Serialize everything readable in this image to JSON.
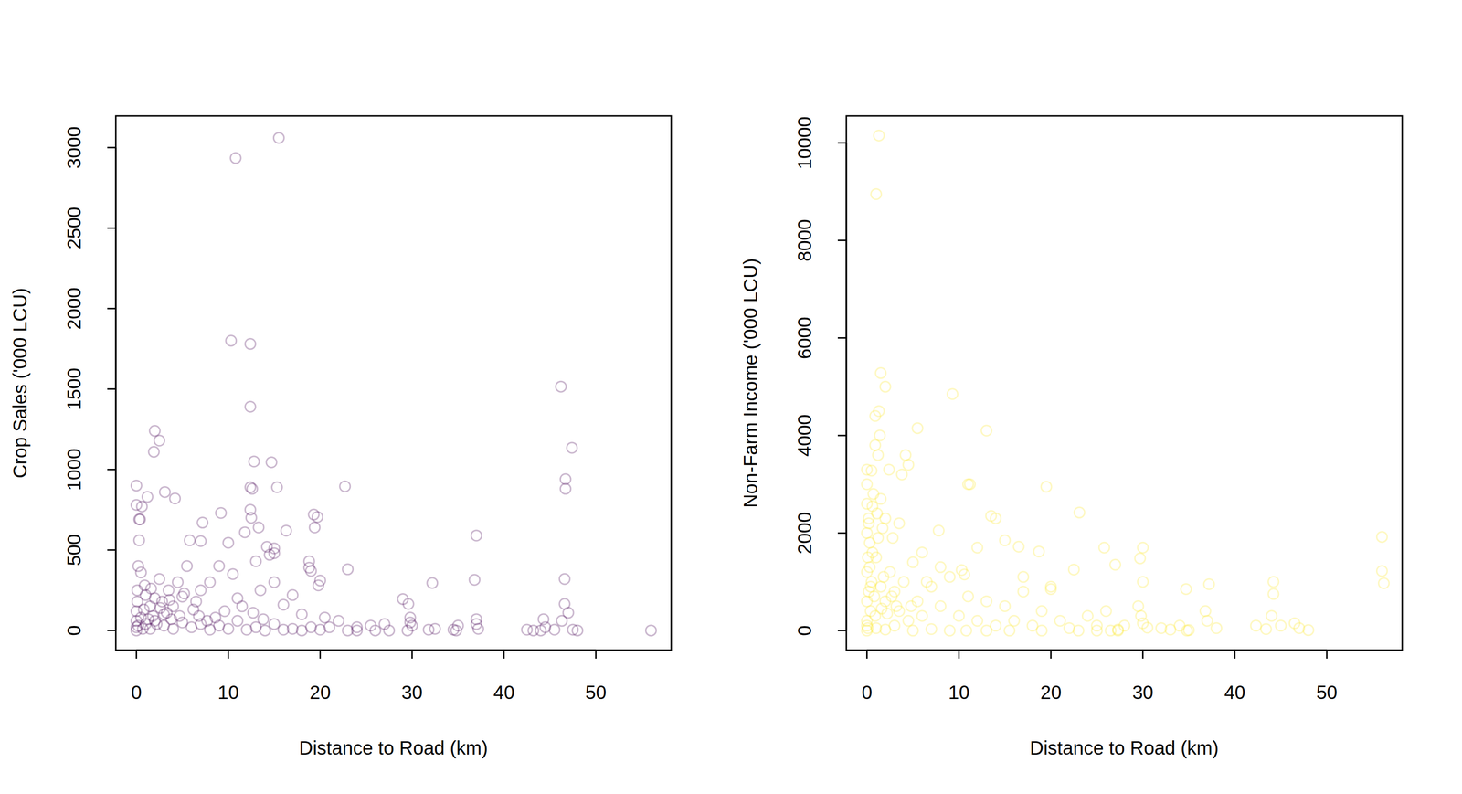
{
  "chart_data": [
    {
      "type": "scatter",
      "x_label": "Distance to Road (km)",
      "y_label": "Crop Sales ('000 LCU)",
      "color": "#440154",
      "marker": "circle-open",
      "xlim": [
        -2.24,
        58.2
      ],
      "ylim": [
        -122,
        3197
      ],
      "xticks": [
        0,
        10,
        20,
        30,
        40,
        50
      ],
      "yticks": [
        0,
        500,
        1000,
        1500,
        2000,
        2500,
        3000
      ],
      "x": [
        15.5,
        10.8,
        10.3,
        12.4,
        12.4,
        46.2,
        47.4,
        46.7,
        46.7,
        2,
        2.5,
        1.9,
        12.8,
        14.7,
        15.3,
        22.7,
        12.4,
        12.6,
        0,
        3.1,
        4.2,
        1.2,
        0,
        0.6,
        9.2,
        19.3,
        19.7,
        7.2,
        0.3,
        37,
        46.6,
        36.8,
        32.2,
        13.3,
        12.4,
        12.5,
        11.8,
        16.3,
        19.4,
        5.8,
        10,
        7,
        14.2,
        15,
        15,
        14.5,
        13,
        18.8,
        18.8,
        19,
        23,
        20,
        19.8,
        29,
        29.6,
        29.8,
        29.8,
        30,
        37,
        37,
        37.2,
        44.3,
        44.5,
        46.6,
        47,
        46.3,
        47.5,
        45.5,
        44,
        43.2,
        42.5,
        48,
        56,
        35,
        34.5,
        32.5,
        31.8,
        27,
        25.5,
        24,
        22,
        21,
        20.5,
        18,
        17,
        16,
        15,
        13.5,
        11,
        10.5,
        9,
        8,
        7,
        6.5,
        5.5,
        5,
        4.5,
        4,
        3.5,
        3,
        2.5,
        2,
        1.5,
        1,
        0.5,
        0.3,
        0.2,
        0.1,
        0,
        0,
        0,
        0,
        0.5,
        1,
        1.5,
        2,
        3,
        4,
        5,
        6,
        7,
        8,
        9,
        10,
        11,
        12,
        13,
        14,
        15,
        16,
        17,
        18,
        19,
        20,
        23,
        24,
        26,
        27.5,
        29.5,
        34.8,
        0.8,
        1.8,
        2.8,
        3.8,
        0.4,
        0.2,
        0.7,
        1.3,
        2.2,
        3.3,
        4.7,
        6.2,
        7.7,
        8.6,
        9.6,
        0.1,
        0.9,
        1.6,
        2.6,
        3.6,
        5.2,
        6.8,
        11.5,
        12.7,
        13.8
      ],
      "values": [
        3060,
        2935,
        1800,
        1780,
        1390,
        1515,
        1135,
        940,
        880,
        1240,
        1180,
        1110,
        1050,
        1045,
        890,
        895,
        890,
        880,
        900,
        860,
        820,
        830,
        780,
        770,
        730,
        720,
        705,
        670,
        690,
        590,
        320,
        315,
        295,
        640,
        750,
        700,
        610,
        620,
        640,
        560,
        545,
        555,
        520,
        480,
        510,
        470,
        430,
        430,
        390,
        370,
        380,
        310,
        280,
        195,
        165,
        80,
        50,
        30,
        70,
        40,
        10,
        70,
        20,
        165,
        110,
        60,
        5,
        5,
        0,
        0,
        5,
        0,
        0,
        30,
        5,
        10,
        5,
        40,
        30,
        20,
        60,
        20,
        80,
        100,
        220,
        160,
        300,
        250,
        200,
        350,
        400,
        300,
        250,
        180,
        400,
        210,
        300,
        150,
        250,
        100,
        320,
        200,
        150,
        220,
        360,
        560,
        400,
        250,
        120,
        60,
        20,
        0,
        80,
        40,
        10,
        60,
        30,
        10,
        50,
        20,
        40,
        5,
        30,
        10,
        60,
        5,
        20,
        0,
        40,
        5,
        10,
        0,
        20,
        5,
        0,
        0,
        0,
        0,
        0,
        0,
        130,
        90,
        180,
        70,
        690,
        30,
        10,
        70,
        40,
        110,
        90,
        130,
        60,
        80,
        120,
        180,
        280,
        260,
        140,
        190,
        230,
        90,
        150,
        110,
        70
      ]
    },
    {
      "type": "scatter",
      "x_label": "Distance to Road (km)",
      "y_label": "Non-Farm Income ('000 LCU)",
      "color": "#FDE725",
      "marker": "circle-open",
      "xlim": [
        -2.24,
        58.2
      ],
      "ylim": [
        -401,
        10554
      ],
      "xticks": [
        0,
        10,
        20,
        30,
        40,
        50
      ],
      "yticks": [
        0,
        2000,
        4000,
        6000,
        8000,
        10000
      ],
      "x": [
        1.3,
        1,
        1.5,
        2,
        1.3,
        0.9,
        9.3,
        5.5,
        13,
        0.9,
        1.2,
        0,
        0.5,
        4.2,
        4.5,
        3.8,
        11,
        11.2,
        19.5,
        0,
        0,
        0.6,
        0.2,
        1.5,
        2,
        23.1,
        13.5,
        14,
        7.8,
        15,
        16.5,
        18.7,
        25.8,
        30,
        29.7,
        10.3,
        10.6,
        22.5,
        34.7,
        37.2,
        44.2,
        44.2,
        56,
        56,
        56.2,
        0,
        0.3,
        0.1,
        0,
        0.5,
        0.2,
        0,
        0.4,
        0,
        0.1,
        0,
        1,
        1.5,
        2,
        2.5,
        3,
        3.5,
        4,
        4.5,
        5,
        5.5,
        6,
        7,
        8,
        9,
        10,
        11,
        12,
        13,
        14,
        15,
        16,
        17,
        18,
        19,
        20,
        21,
        22,
        24,
        25,
        26,
        27.3,
        28,
        29.5,
        29.8,
        30,
        30.5,
        32,
        33,
        34,
        35,
        36.8,
        37,
        38,
        42.3,
        43.4,
        44,
        45,
        46.5,
        47,
        48,
        0.7,
        1.7,
        2.8,
        3.5,
        6,
        8,
        12,
        17,
        20,
        27,
        30,
        0,
        1,
        2,
        3,
        5,
        7,
        9,
        10.8,
        13,
        15.5,
        19,
        23,
        25,
        26.5,
        27.3,
        34.8,
        1.4,
        2.4,
        0.3,
        0.8,
        1.8,
        2.2,
        3.2,
        0.6,
        1.1,
        0.4,
        0.9,
        1.6,
        2.7,
        4.8,
        6.5,
        0.2,
        1.2
      ],
      "values": [
        10150,
        8950,
        5280,
        5000,
        4500,
        4400,
        4850,
        4150,
        4100,
        3800,
        3600,
        3300,
        3280,
        3600,
        3400,
        3200,
        3000,
        3000,
        2950,
        3000,
        2600,
        2550,
        2300,
        2700,
        2300,
        2420,
        2350,
        2300,
        2050,
        1850,
        1720,
        1620,
        1700,
        1700,
        1480,
        1240,
        1150,
        1250,
        850,
        950,
        1000,
        750,
        1920,
        1220,
        970,
        2000,
        1800,
        1500,
        1200,
        1000,
        800,
        600,
        400,
        200,
        50,
        0,
        1500,
        900,
        600,
        1200,
        800,
        400,
        1000,
        200,
        1400,
        600,
        300,
        900,
        500,
        1100,
        300,
        700,
        200,
        600,
        100,
        500,
        200,
        800,
        100,
        400,
        900,
        200,
        50,
        300,
        100,
        400,
        20,
        100,
        500,
        300,
        150,
        60,
        50,
        20,
        100,
        10,
        400,
        200,
        50,
        100,
        30,
        300,
        100,
        150,
        50,
        10,
        2800,
        2100,
        1900,
        2200,
        1600,
        1300,
        1700,
        1100,
        850,
        1350,
        1000,
        100,
        50,
        20,
        100,
        0,
        30,
        0,
        0,
        0,
        0,
        0,
        0,
        0,
        0,
        0,
        0,
        4000,
        3300,
        1300,
        700,
        1100,
        350,
        500,
        1600,
        2400,
        900,
        300,
        450,
        700,
        500,
        1000,
        2200,
        1900
      ]
    }
  ]
}
